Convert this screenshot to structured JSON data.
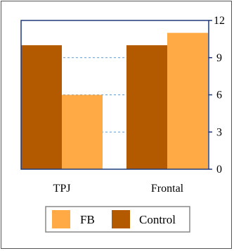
{
  "chart_data": {
    "type": "bar",
    "title": "",
    "xlabel": "",
    "ylabel": "",
    "categories": [
      "TPJ",
      "Frontal"
    ],
    "series": [
      {
        "name": "Control",
        "values": [
          10,
          10
        ],
        "color": "#b35900"
      },
      {
        "name": "FB",
        "values": [
          6,
          11
        ],
        "color": "#ffaa44"
      }
    ],
    "ylim": [
      0,
      12
    ],
    "yticks": [
      0,
      3,
      6,
      9,
      12
    ],
    "y_axis_side": "right",
    "grid": "dashed horizontal",
    "grid_color": "#6699cc",
    "axis_color": "#1f3a7a",
    "legend": {
      "placement": "bottom",
      "entries": [
        {
          "label": "FB",
          "color": "#ffaa44"
        },
        {
          "label": "Control",
          "color": "#b35900"
        }
      ]
    }
  }
}
